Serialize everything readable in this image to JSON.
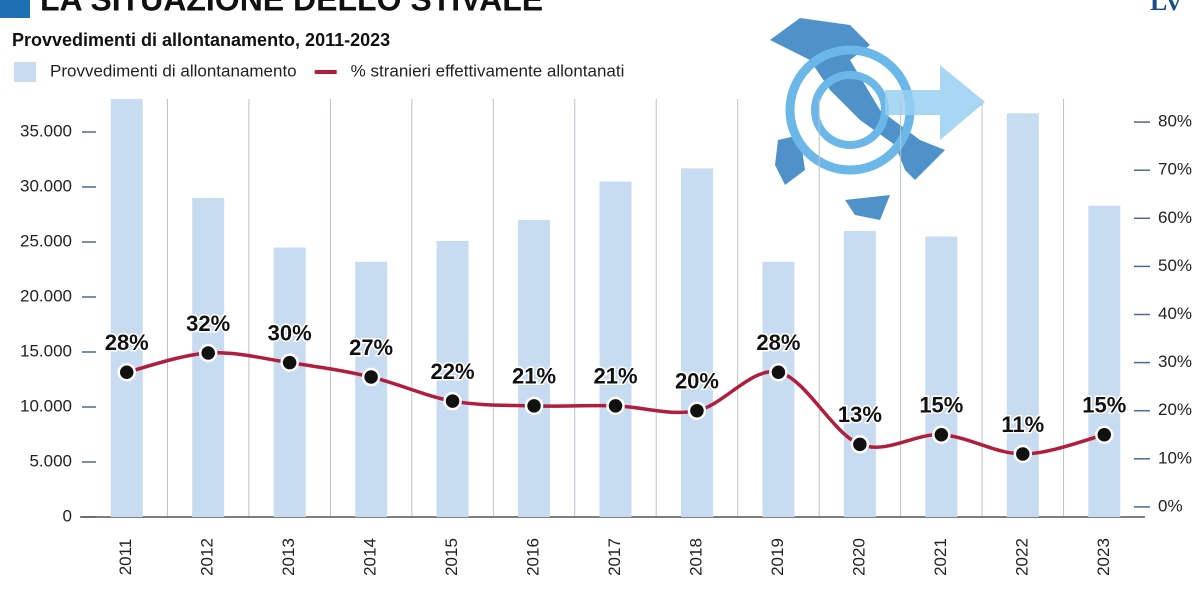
{
  "logo": "Lv",
  "chart_data": {
    "type": "bar",
    "title": "LA SITUAZIONE DELLO STIVALE",
    "subtitle": "Provvedimenti di allontanamento, 2011-2023",
    "categories": [
      "2011",
      "2012",
      "2013",
      "2014",
      "2015",
      "2016",
      "2017",
      "2018",
      "2019",
      "2020",
      "2021",
      "2022",
      "2023"
    ],
    "series": [
      {
        "name": "Provvedimenti di allontanamento",
        "type": "bar",
        "color": "#c8dcf1",
        "values": [
          38000,
          29000,
          24500,
          23200,
          25100,
          27000,
          30500,
          31700,
          23200,
          26000,
          25500,
          36700,
          28300
        ]
      },
      {
        "name": "% stranieri effettivamente allontanati",
        "type": "line",
        "color": "#b01e3c",
        "axis": "y2",
        "values": [
          28,
          32,
          30,
          27,
          22,
          21,
          21,
          20,
          28,
          13,
          15,
          11,
          15
        ],
        "value_labels": [
          "28%",
          "32%",
          "30%",
          "27%",
          "22%",
          "21%",
          "21%",
          "20%",
          "28%",
          "13%",
          "15%",
          "11%",
          "15%"
        ]
      }
    ],
    "ylim": [
      0,
      38000
    ],
    "yticks": [
      0,
      {
        "value": 5000,
        "label": "5.000"
      },
      {
        "value": 10000,
        "label": "10.000"
      },
      {
        "value": 15000,
        "label": "15.000"
      },
      {
        "value": 20000,
        "label": "20.000"
      },
      {
        "value": 25000,
        "label": "25.000"
      },
      {
        "value": 30000,
        "label": "30.000"
      },
      {
        "value": 35000,
        "label": "35.000"
      }
    ],
    "y2lim": [
      -2.1,
      84.8
    ],
    "y2ticks": [
      {
        "value": 0,
        "label": "0%"
      },
      {
        "value": 10,
        "label": "10%"
      },
      {
        "value": 20,
        "label": "20%"
      },
      {
        "value": 30,
        "label": "30%"
      },
      {
        "value": 40,
        "label": "40%"
      },
      {
        "value": 50,
        "label": "50%"
      },
      {
        "value": 60,
        "label": "60%"
      },
      {
        "value": 70,
        "label": "70%"
      },
      {
        "value": 80,
        "label": "80%"
      }
    ],
    "grid": true
  }
}
